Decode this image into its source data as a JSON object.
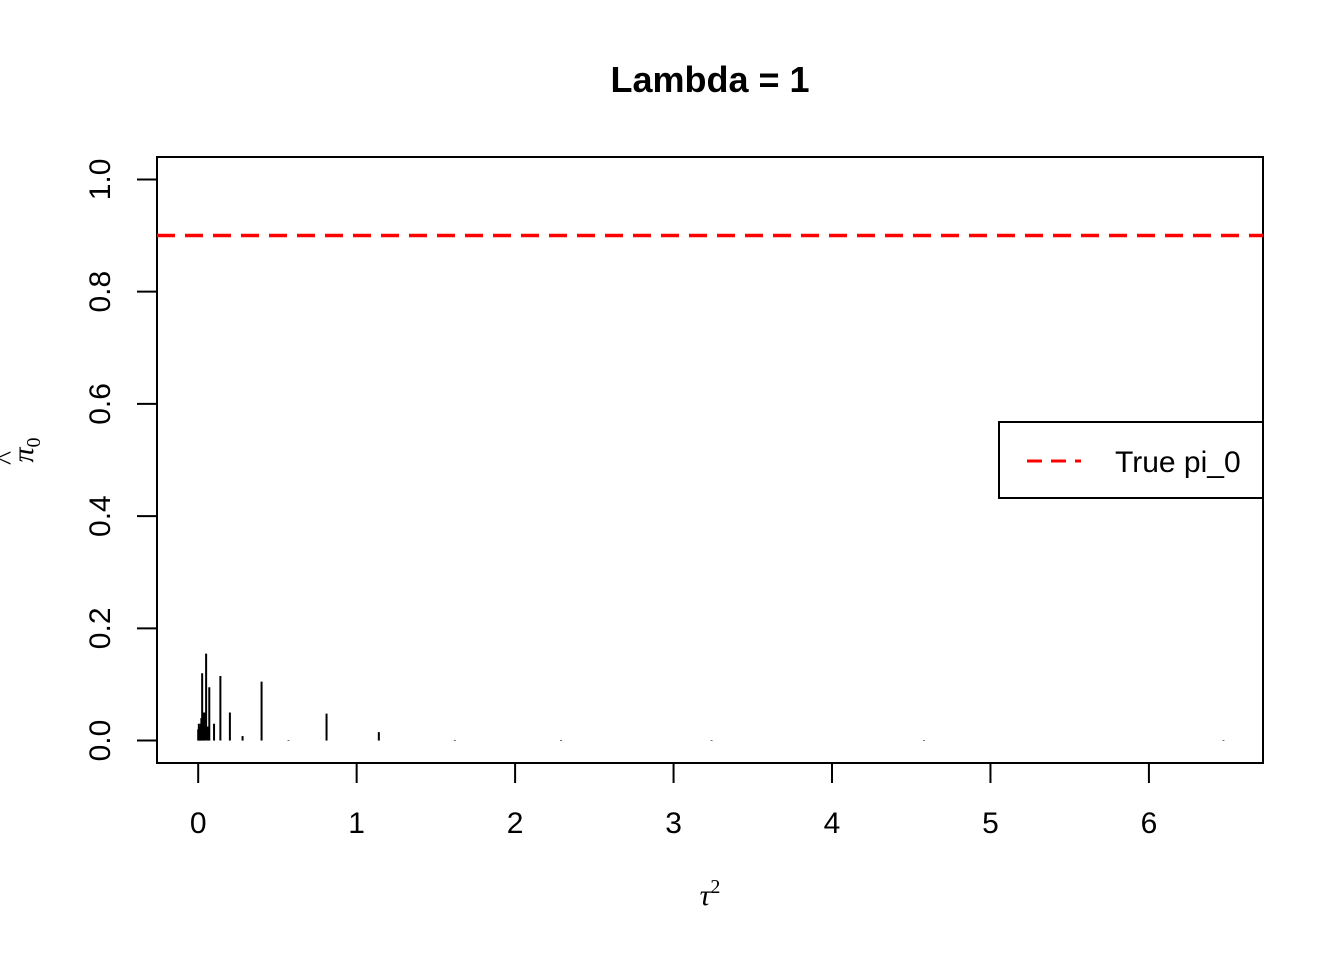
{
  "chart_data": {
    "type": "bar",
    "title": "Lambda = 1",
    "xlabel": "τ²",
    "ylabel": "π̂₀",
    "xlim": [
      -0.26,
      6.72
    ],
    "ylim": [
      -0.04,
      1.04
    ],
    "x_ticks": [
      "0",
      "1",
      "2",
      "3",
      "4",
      "5",
      "6"
    ],
    "y_ticks": [
      "0.0",
      "0.2",
      "0.4",
      "0.6",
      "0.8",
      "1.0"
    ],
    "grid": false,
    "legend_position": "right",
    "series": [
      {
        "style": "histogram spikes",
        "color": "#000000",
        "x": [
          0.0,
          0.004,
          0.008,
          0.012,
          0.016,
          0.02,
          0.025,
          0.03,
          0.035,
          0.04,
          0.05,
          0.06,
          0.07,
          0.1,
          0.14,
          0.2,
          0.28,
          0.4,
          0.57,
          0.81,
          1.14,
          1.62,
          2.29,
          3.24,
          4.58,
          6.47
        ],
        "values": [
          0.02,
          0.03,
          0.02,
          0.025,
          0.03,
          0.04,
          0.12,
          0.04,
          0.05,
          0.05,
          0.155,
          0.025,
          0.095,
          0.03,
          0.115,
          0.05,
          0.008,
          0.105,
          0.001,
          0.048,
          0.015,
          0.001,
          0.001,
          0.001,
          0.001,
          0.001
        ]
      }
    ],
    "reference_lines": [
      {
        "name": "True pi_0",
        "y": 0.9,
        "color": "#ff0000",
        "style": "dashed"
      }
    ],
    "legend": [
      {
        "label": "True pi_0",
        "color": "#ff0000",
        "style": "dashed"
      }
    ]
  }
}
